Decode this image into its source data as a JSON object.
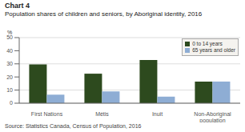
{
  "chart_data": {
    "type": "bar",
    "title": "Chart 4",
    "subtitle": "Population shares of children and seniors, by Aboriginal identity, 2016",
    "ylabel": "%",
    "categories": [
      "First Nations",
      "Métis",
      "Inuit",
      "Non-Aboriginal population"
    ],
    "series": [
      {
        "name": "0 to 14 years",
        "color": "#2d4a1e",
        "values": [
          29.5,
          22.5,
          33.0,
          16.5
        ]
      },
      {
        "name": "65 years and older",
        "color": "#8eadd4",
        "values": [
          6.5,
          9.0,
          5.0,
          16.5
        ]
      }
    ],
    "ylim": [
      0,
      50
    ],
    "yticks": [
      0,
      10,
      20,
      30,
      40,
      50
    ],
    "grid": true,
    "legend": "upper right",
    "annotations": [
      "Source: Statistics Canada, Census of Population, 2016"
    ]
  }
}
